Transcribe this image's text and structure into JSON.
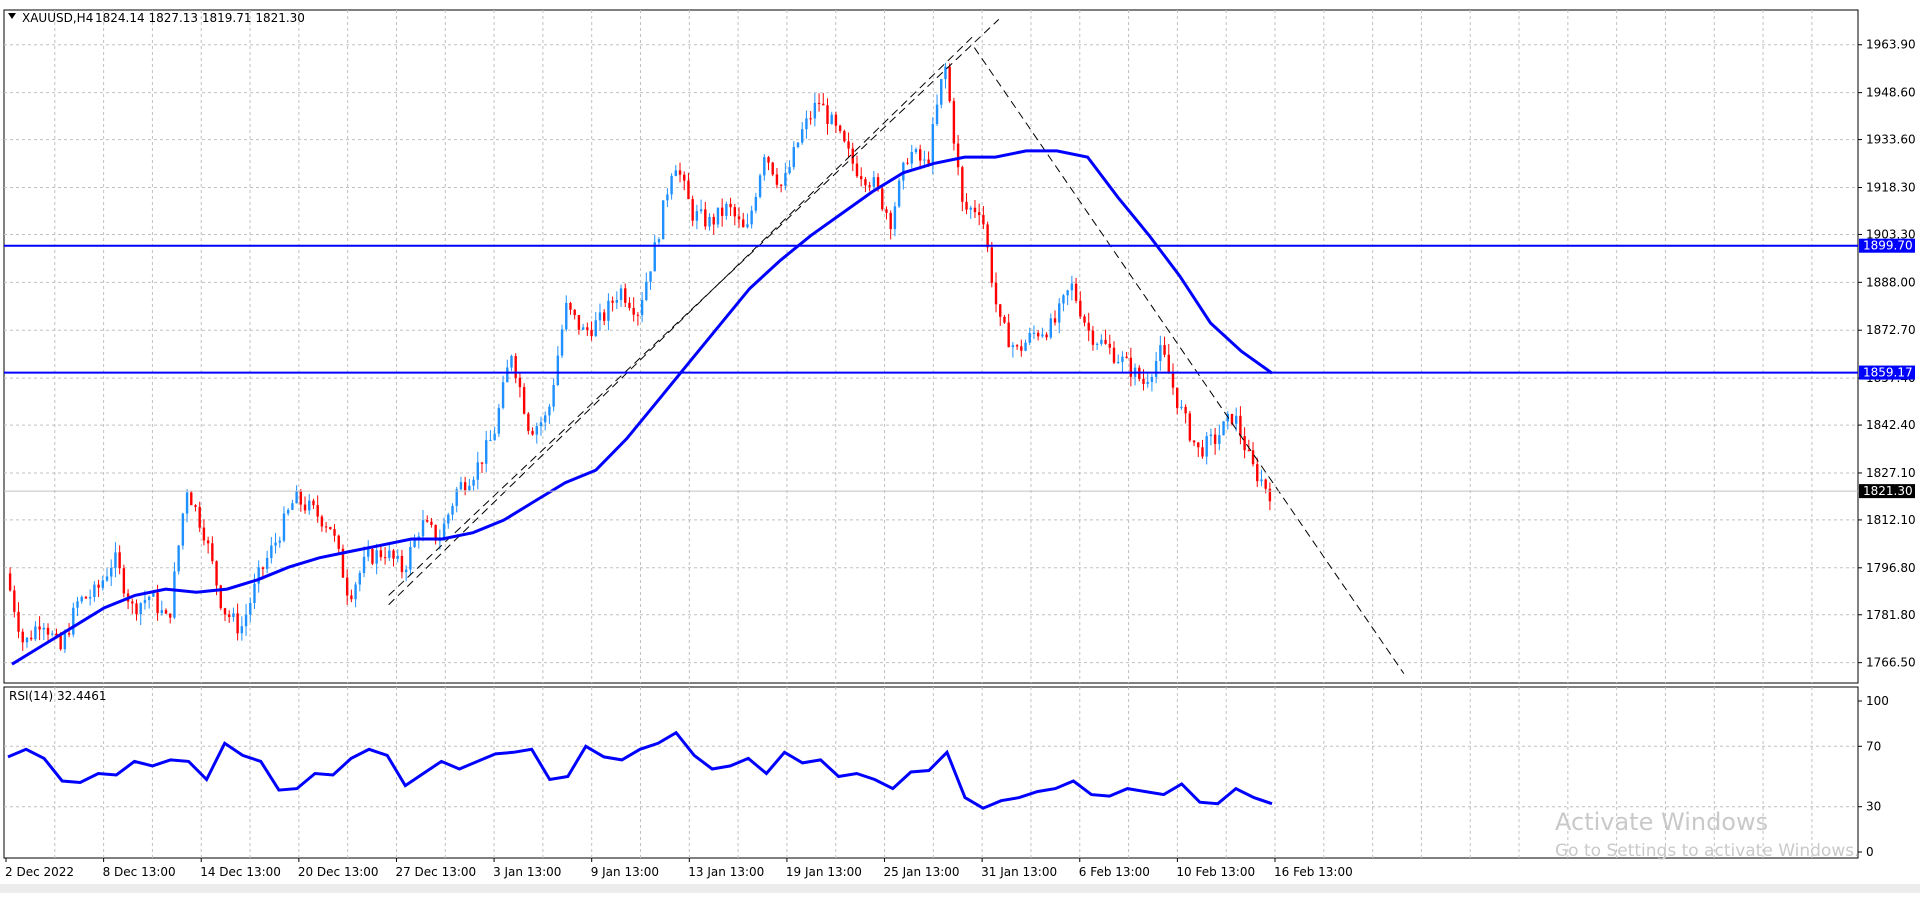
{
  "header": {
    "symbol_label": "XAUUSD,H4",
    "ohlc_text": "1824.14 1827.13 1819.71 1821.30"
  },
  "rsi_panel": {
    "label": "RSI(14) 32.4461"
  },
  "watermark": {
    "title": "Activate Windows",
    "subtitle": "Go to Settings to activate Windows."
  },
  "colors": {
    "background": "#ffffff",
    "up_candle": "#1e90ff",
    "down_candle": "#ff0000",
    "moving_average": "#0000ff",
    "support_lines": "#0000ff",
    "rsi_line": "#0000ff",
    "grid": "#c0c0c0",
    "price_tag_bg": "#0000ff",
    "current_tag_bg": "#000000"
  },
  "chart_data": [
    {
      "type": "candlestick",
      "symbol": "XAUUSD",
      "timeframe": "H4",
      "ylim": [
        1760,
        1975
      ],
      "price_ticks": [
        "1963.90",
        "1948.60",
        "1933.60",
        "1918.30",
        "1903.30",
        "1888.00",
        "1872.70",
        "1857.40",
        "1842.40",
        "1827.10",
        "1812.10",
        "1796.80",
        "1781.80",
        "1766.50"
      ],
      "time_labels": [
        "2 Dec 2022",
        "8 Dec 13:00",
        "14 Dec 13:00",
        "20 Dec 13:00",
        "27 Dec 13:00",
        "3 Jan 13:00",
        "9 Jan 13:00",
        "13 Jan 13:00",
        "19 Jan 13:00",
        "25 Jan 13:00",
        "31 Jan 13:00",
        "6 Feb 13:00",
        "10 Feb 13:00",
        "16 Feb 13:00"
      ],
      "horizontal_levels": [
        {
          "value": 1899.7,
          "label": "1899.70"
        },
        {
          "value": 1859.17,
          "label": "1859.17"
        }
      ],
      "current_price": {
        "value": 1821.3,
        "label": "1821.30"
      },
      "ohlc_path": [
        1795,
        1772,
        1781,
        1770,
        1786,
        1789,
        1800,
        1784,
        1788,
        1779,
        1823,
        1808,
        1784,
        1777,
        1794,
        1806,
        1819,
        1815,
        1810,
        1788,
        1800,
        1802,
        1796,
        1811,
        1806,
        1822,
        1828,
        1839,
        1866,
        1841,
        1845,
        1880,
        1872,
        1876,
        1886,
        1879,
        1900,
        1928,
        1910,
        1907,
        1912,
        1903,
        1930,
        1918,
        1935,
        1946,
        1936,
        1925,
        1920,
        1908,
        1930,
        1925,
        1958,
        1911,
        1912,
        1875,
        1866,
        1872,
        1874,
        1887,
        1872,
        1867,
        1862,
        1856,
        1866,
        1848,
        1834,
        1838,
        1846,
        1829,
        1821
      ],
      "moving_average": [
        1766,
        1772,
        1778,
        1784,
        1788,
        1790,
        1789,
        1790,
        1793,
        1797,
        1800,
        1802,
        1804,
        1806,
        1806,
        1808,
        1812,
        1818,
        1824,
        1828,
        1838,
        1850,
        1862,
        1874,
        1886,
        1895,
        1903,
        1910,
        1917,
        1923,
        1926,
        1928,
        1928,
        1930,
        1930,
        1928,
        1915,
        1903,
        1890,
        1875,
        1866,
        1859
      ],
      "trendlines": [
        {
          "name": "channel-upper",
          "from": [
            "27 Dec",
            1788
          ],
          "to": [
            "1 Feb",
            1972
          ]
        },
        {
          "name": "channel-lower",
          "from": [
            "27 Dec",
            1785
          ],
          "to": [
            "31 Jan",
            1967
          ]
        },
        {
          "name": "descending-line",
          "from": [
            "31 Jan",
            1963
          ],
          "to": [
            "20 Feb",
            1763
          ]
        }
      ]
    },
    {
      "type": "line",
      "name": "RSI(14)",
      "ylim": [
        0,
        100
      ],
      "levels": [
        30,
        70
      ],
      "ticks": [
        "100",
        "70",
        "30",
        "0"
      ],
      "values": [
        63,
        68,
        62,
        47,
        46,
        52,
        51,
        60,
        57,
        61,
        60,
        48,
        72,
        64,
        60,
        41,
        42,
        52,
        51,
        62,
        68,
        64,
        44,
        52,
        60,
        55,
        60,
        65,
        66,
        68,
        48,
        50,
        70,
        63,
        61,
        68,
        72,
        79,
        64,
        55,
        57,
        62,
        52,
        66,
        59,
        61,
        50,
        52,
        48,
        42,
        53,
        54,
        66,
        36,
        29,
        34,
        36,
        40,
        42,
        47,
        38,
        37,
        42,
        40,
        38,
        45,
        33,
        32,
        42,
        36,
        32
      ]
    }
  ]
}
